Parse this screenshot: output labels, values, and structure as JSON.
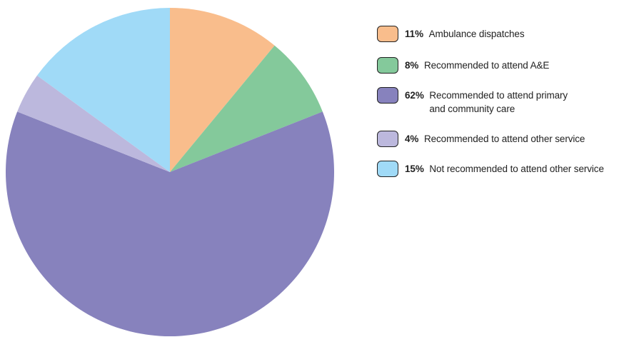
{
  "chart_data": {
    "type": "pie",
    "title": "",
    "slices": [
      {
        "label": "Ambulance dispatches",
        "value": 11,
        "value_label": "11%",
        "color": "#f9bd8c"
      },
      {
        "label": "Recommended to attend A&E",
        "value": 8,
        "value_label": "8%",
        "color": "#84c99b"
      },
      {
        "label": "Recommended to attend primary\nand community care",
        "value": 62,
        "value_label": "62%",
        "color": "#8782bd"
      },
      {
        "label": "Recommended to attend other service",
        "value": 4,
        "value_label": "4%",
        "color": "#bcb8dd"
      },
      {
        "label": "Not recommended to attend other service",
        "value": 15,
        "value_label": "15%",
        "color": "#a0daf7"
      }
    ],
    "start_angle": "12 o'clock",
    "direction": "clockwise",
    "legend_position": "right"
  }
}
